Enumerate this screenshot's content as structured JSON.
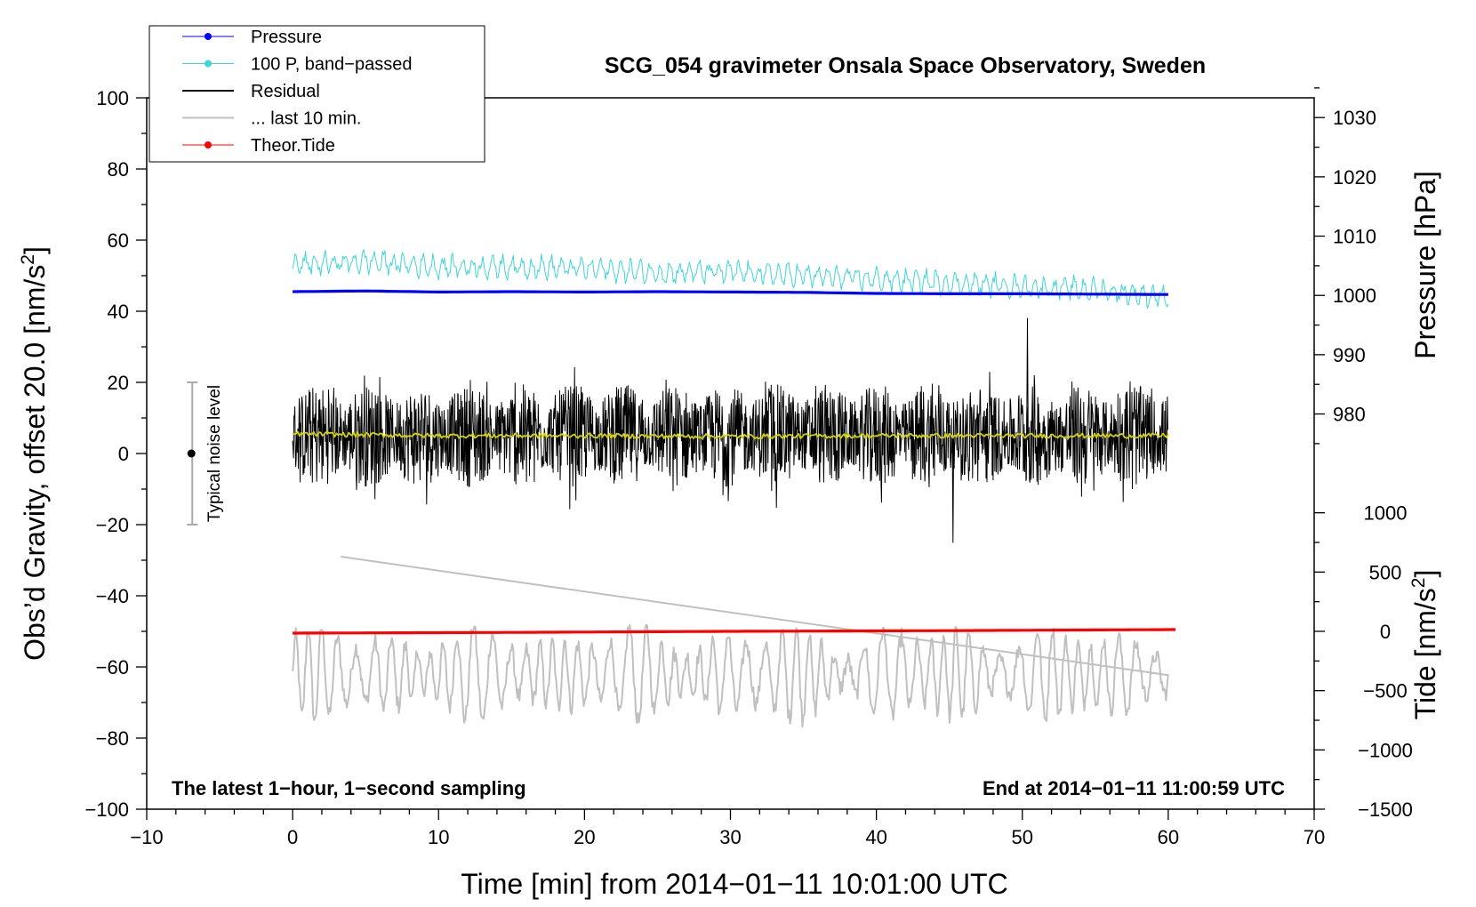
{
  "chart_data": {
    "type": "line",
    "title": "SCG_054 gravimeter Onsala Space Observatory, Sweden",
    "xlabel": "Time [min] from 2014−01−11 10:01:00 UTC",
    "ylabel": "Obs’d Gravity, offset 20.0 [nm/s²]",
    "ylabel_main": "Obs’d Gravity, offset 20.0 [nm/s",
    "ylabel_sup": "2",
    "ylabel_tail": "]",
    "y2_pressure_label": "Pressure [hPa]",
    "y2_tide_label": "Tide [nm/s²]",
    "y2_tide_label_main": "Tide [nm/s",
    "y2_tide_label_sup": "2",
    "y2_tide_label_tail": "]",
    "xlim": [
      -10,
      70
    ],
    "ylim": [
      -100,
      100
    ],
    "x_ticks": [
      -10,
      0,
      10,
      20,
      30,
      40,
      50,
      60,
      70
    ],
    "x_tick_labels": [
      "−10",
      "0",
      "10",
      "20",
      "30",
      "40",
      "50",
      "60",
      "70"
    ],
    "y_ticks": [
      -100,
      -80,
      -60,
      -40,
      -20,
      0,
      20,
      40,
      60,
      80,
      100
    ],
    "y_tick_labels": [
      "−100",
      "−80",
      "−60",
      "−40",
      "−20",
      "0",
      "20",
      "40",
      "60",
      "80",
      "100"
    ],
    "pressure_ticks": [
      980,
      990,
      1000,
      1010,
      1020,
      1030
    ],
    "pressure_tick_labels": [
      "980",
      "990",
      "1000",
      "1010",
      "1020",
      "1030"
    ],
    "pressure_map": {
      "p_at_y0": 973.333,
      "hpa_per_nm": 0.6
    },
    "tide_ticks": [
      -1500,
      -1000,
      -500,
      0,
      500,
      1000
    ],
    "tide_tick_labels": [
      "−1500",
      "−1000",
      "−500",
      "0",
      "500",
      "1000"
    ],
    "tide_map": {
      "t_at_y_m50": 0,
      "nm_per_tide": 0.0333333
    },
    "series": [
      {
        "name": "Pressure",
        "color": "#0000ff",
        "x": [
          0,
          5,
          10,
          15,
          20,
          25,
          30,
          35,
          40,
          45,
          50,
          55,
          60
        ],
        "values": [
          45.5,
          45.7,
          45.4,
          45.5,
          45.4,
          45.5,
          45.4,
          45.3,
          45.0,
          44.9,
          44.9,
          44.8,
          44.7
        ]
      },
      {
        "name": "100 P, band−passed",
        "color": "#3fd5d5",
        "x": [
          0,
          5,
          10,
          15,
          20,
          25,
          30,
          35,
          40,
          45,
          50,
          55,
          60
        ],
        "values": [
          53,
          54,
          52.5,
          52.5,
          52,
          51,
          51,
          50,
          49,
          48,
          47,
          46,
          44
        ]
      },
      {
        "name": "Residual",
        "color": "#000000",
        "x": [
          0,
          10,
          20,
          30,
          40,
          50,
          60
        ],
        "values": [
          5,
          5,
          5,
          5,
          5,
          5,
          5
        ],
        "amplitude": 9,
        "max": 38,
        "min": -25
      },
      {
        "name": "Residual smoothed",
        "color": "#d4d400",
        "x": [
          0,
          10,
          20,
          30,
          40,
          50,
          60
        ],
        "values": [
          5.5,
          5,
          5,
          4.8,
          5,
          5,
          5
        ]
      },
      {
        "name": "... last 10 min.",
        "color": "#c0c0c0",
        "x": [
          0,
          10,
          20,
          30,
          40,
          50,
          60
        ],
        "values": [
          -62,
          -62,
          -62,
          -62,
          -62,
          -62,
          -62
        ],
        "amplitude": 11,
        "max": -29,
        "min": -86
      },
      {
        "name": "Theor.Tide",
        "color": "#ff0000",
        "x": [
          0,
          15,
          30,
          45,
          60.5
        ],
        "values": [
          -50.5,
          -50.3,
          -50.0,
          -49.8,
          -49.5
        ]
      }
    ],
    "legend": [
      {
        "label": "Pressure",
        "color": "#0000ff",
        "marker": true
      },
      {
        "label": "100 P, band−passed",
        "color": "#3fd5d5",
        "marker": true
      },
      {
        "label": "Residual",
        "color": "#000000",
        "marker": false
      },
      {
        "label": "... last 10 min.",
        "color": "#c0c0c0",
        "marker": false
      },
      {
        "label": "Theor.Tide",
        "color": "#ff0000",
        "marker": true
      }
    ],
    "noise_bar": {
      "x": -7,
      "center": 0,
      "low": -20,
      "high": 20,
      "label": "Typical noise level"
    },
    "annotation_left": "The latest 1−hour, 1−second sampling",
    "annotation_right": "End at 2014−01−11 11:00:59 UTC",
    "legend_position": "top-left"
  }
}
